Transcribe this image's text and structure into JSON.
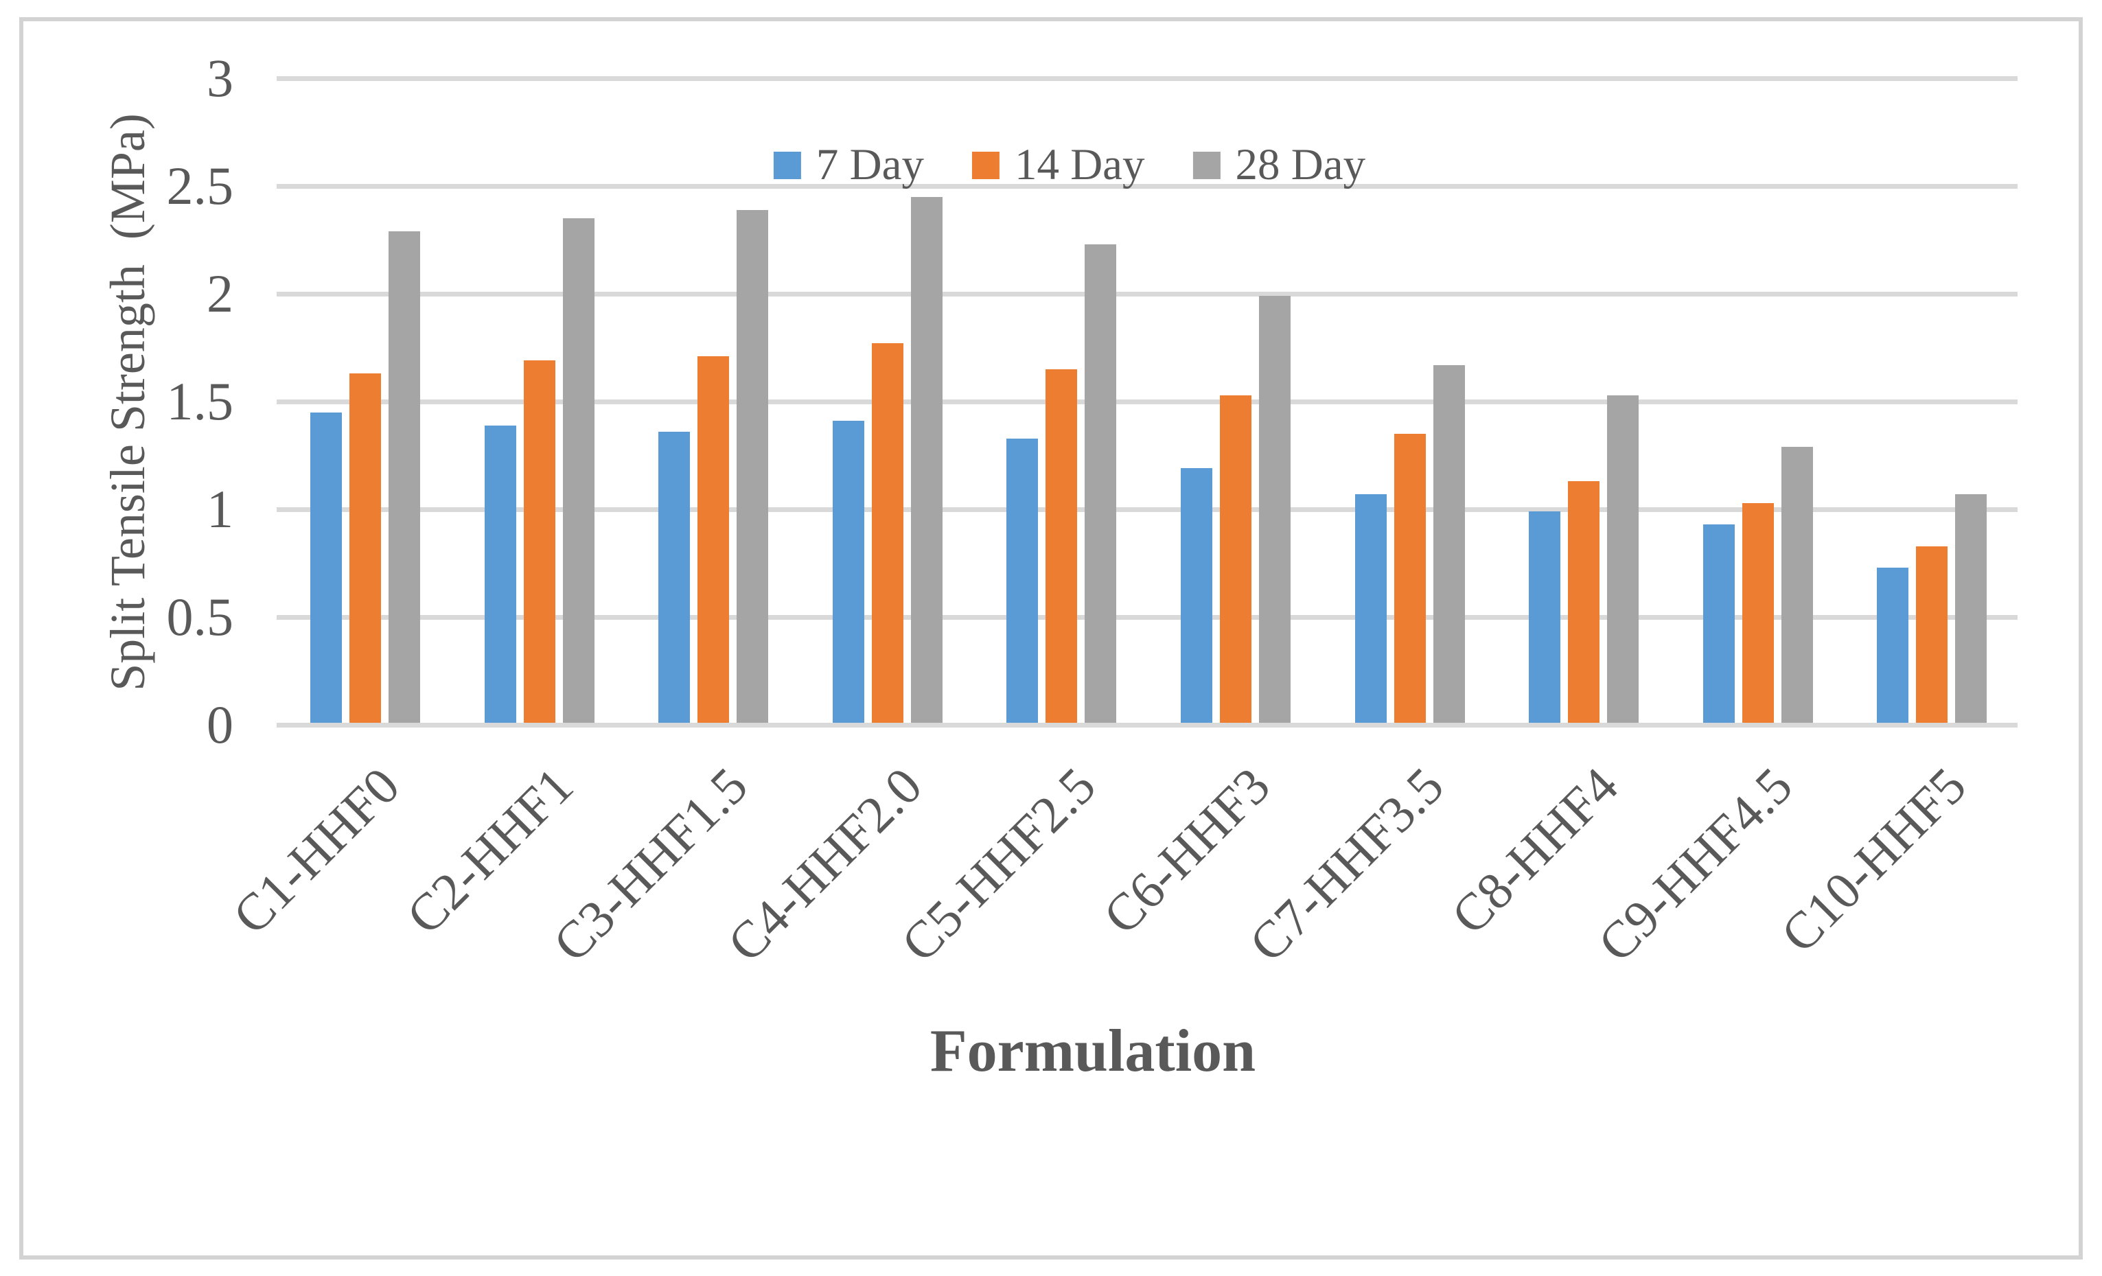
{
  "figure": {
    "background_color": "#FFFFFF",
    "border_color": "#D3D3D3",
    "text_color": "#595959",
    "gridline_color": "#D9D9D9"
  },
  "chart_data": {
    "type": "bar",
    "title": "",
    "xlabel": "Formulation",
    "ylabel": "Split Tensile Strength  (MPa)",
    "categories": [
      "C1-HHF0",
      "C2-HHF1",
      "C3-HHF1.5",
      "C4-HHF2.0",
      "C5-HHF2.5",
      "C6-HHF3",
      "C7-HHF3.5",
      "C8-HHF4",
      "C9-HHF4.5",
      "C10-HHF5"
    ],
    "series": [
      {
        "name": "7 Day",
        "color": "#5B9BD5",
        "values": [
          1.44,
          1.38,
          1.35,
          1.4,
          1.32,
          1.18,
          1.06,
          0.98,
          0.92,
          0.72
        ]
      },
      {
        "name": "14 Day",
        "color": "#ED7D31",
        "values": [
          1.62,
          1.68,
          1.7,
          1.76,
          1.64,
          1.52,
          1.34,
          1.12,
          1.02,
          0.82
        ]
      },
      {
        "name": "28 Day",
        "color": "#A5A5A5",
        "values": [
          2.28,
          2.34,
          2.38,
          2.44,
          2.22,
          1.98,
          1.66,
          1.52,
          1.28,
          1.06
        ]
      }
    ],
    "ylim": [
      0,
      3
    ],
    "y_ticks": [
      0,
      0.5,
      1,
      1.5,
      2,
      2.5,
      3
    ],
    "y_tick_labels": [
      "0",
      "0.5",
      "1",
      "1.5",
      "2",
      "2.5",
      "3"
    ],
    "grid": true,
    "legend_position": "top-center"
  }
}
